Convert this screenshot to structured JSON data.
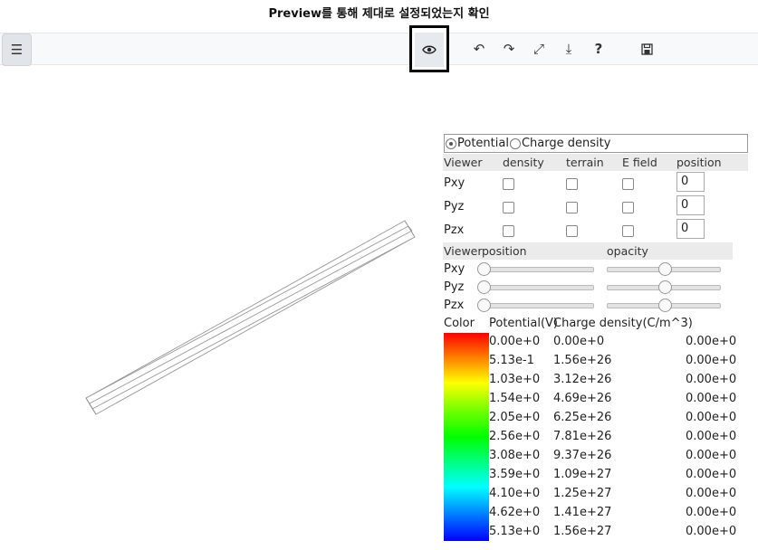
{
  "caption": "Preview를 통해 제대로 설정되었는지 확인",
  "toolbar": {
    "menu_icon": "☰",
    "preview_icon": "👁",
    "undo_icon": "↶",
    "redo_icon": "↷",
    "fullscreen_icon": "⤢",
    "download_icon": "⤓",
    "help_icon": "?",
    "save_icon": "💾"
  },
  "panel": {
    "mode_options": [
      "Potential",
      "Charge density"
    ],
    "mode_selected": "Potential",
    "viewer_header": [
      "Viewer",
      "density",
      "terrain",
      "E field",
      "position"
    ],
    "planes": [
      {
        "label": "Pxy",
        "position": "0"
      },
      {
        "label": "Pyz",
        "position": "0"
      },
      {
        "label": "Pzx",
        "position": "0"
      }
    ],
    "slider_header": [
      "Viewer",
      "position",
      "opacity"
    ],
    "sliders": [
      {
        "label": "Pxy",
        "position": 0.0,
        "opacity": 0.5
      },
      {
        "label": "Pyz",
        "position": 0.0,
        "opacity": 0.5
      },
      {
        "label": "Pzx",
        "position": 0.0,
        "opacity": 0.5
      }
    ],
    "legend_header": {
      "color": "Color",
      "potential": "Potential(V)",
      "charge": "Charge density(C/m^3)"
    },
    "legend_rows": [
      {
        "potential": "0.00e+0",
        "charge": "0.00e+0",
        "extra": "0.00e+0"
      },
      {
        "potential": "5.13e-1",
        "charge": "1.56e+26",
        "extra": "0.00e+0"
      },
      {
        "potential": "1.03e+0",
        "charge": "3.12e+26",
        "extra": "0.00e+0"
      },
      {
        "potential": "1.54e+0",
        "charge": "4.69e+26",
        "extra": "0.00e+0"
      },
      {
        "potential": "2.05e+0",
        "charge": "6.25e+26",
        "extra": "0.00e+0"
      },
      {
        "potential": "2.56e+0",
        "charge": "7.81e+26",
        "extra": "0.00e+0"
      },
      {
        "potential": "3.08e+0",
        "charge": "9.37e+26",
        "extra": "0.00e+0"
      },
      {
        "potential": "3.59e+0",
        "charge": "1.09e+27",
        "extra": "0.00e+0"
      },
      {
        "potential": "4.10e+0",
        "charge": "1.25e+27",
        "extra": "0.00e+0"
      },
      {
        "potential": "4.62e+0",
        "charge": "1.41e+27",
        "extra": "0.00e+0"
      },
      {
        "potential": "5.13e+0",
        "charge": "1.56e+27",
        "extra": "0.00e+0"
      }
    ]
  }
}
